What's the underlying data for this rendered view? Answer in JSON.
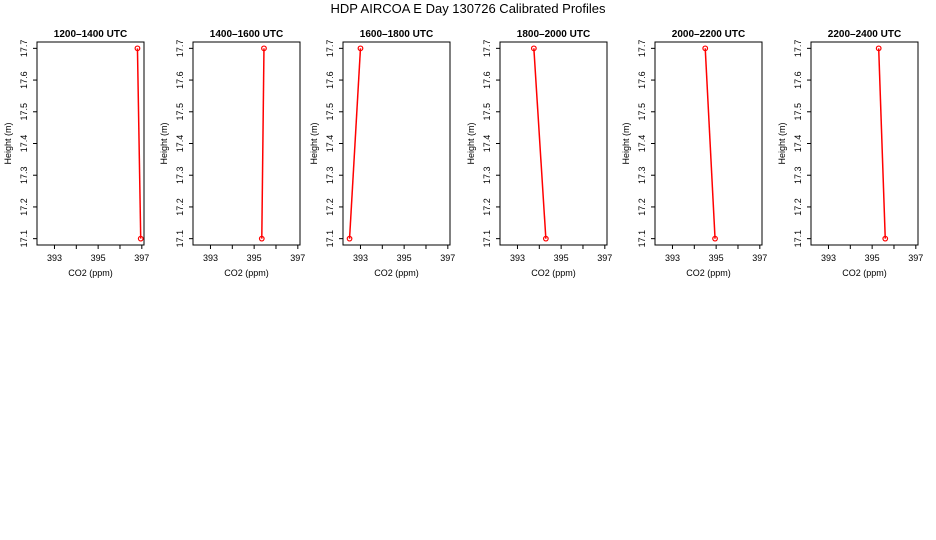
{
  "figure": {
    "title": "HDP AIRCOA E  Day 130726  Calibrated Profiles"
  },
  "chart_data": [
    {
      "type": "line",
      "title": "1200–1400 UTC",
      "xlabel": "CO2 (ppm)",
      "ylabel": "Height (m)",
      "xlim": [
        392.2,
        397.1
      ],
      "ylim": [
        17.08,
        17.72
      ],
      "xticks": [
        393,
        394,
        395,
        396,
        397
      ],
      "xtick_labels": [
        "393",
        "",
        "395",
        "",
        "397"
      ],
      "yticks": [
        17.1,
        17.2,
        17.3,
        17.4,
        17.5,
        17.6,
        17.7
      ],
      "ytick_labels": [
        "17.1",
        "17.2",
        "17.3",
        "17.4",
        "17.5",
        "17.6",
        "17.7"
      ],
      "series": [
        {
          "color": "#ff0000",
          "x": [
            396.95,
            396.8
          ],
          "y": [
            17.1,
            17.7
          ]
        }
      ],
      "grid": false,
      "legend": "none"
    },
    {
      "type": "line",
      "title": "1400–1600 UTC",
      "xlabel": "CO2 (ppm)",
      "ylabel": "Height (m)",
      "xlim": [
        392.2,
        397.1
      ],
      "ylim": [
        17.08,
        17.72
      ],
      "xticks": [
        393,
        394,
        395,
        396,
        397
      ],
      "xtick_labels": [
        "393",
        "",
        "395",
        "",
        "397"
      ],
      "yticks": [
        17.1,
        17.2,
        17.3,
        17.4,
        17.5,
        17.6,
        17.7
      ],
      "ytick_labels": [
        "17.1",
        "17.2",
        "17.3",
        "17.4",
        "17.5",
        "17.6",
        "17.7"
      ],
      "series": [
        {
          "color": "#ff0000",
          "x": [
            395.35,
            395.45
          ],
          "y": [
            17.1,
            17.7
          ]
        }
      ],
      "grid": false,
      "legend": "none"
    },
    {
      "type": "line",
      "title": "1600–1800 UTC",
      "xlabel": "CO2 (ppm)",
      "ylabel": "Height (m)",
      "xlim": [
        392.2,
        397.1
      ],
      "ylim": [
        17.08,
        17.72
      ],
      "xticks": [
        393,
        394,
        395,
        396,
        397
      ],
      "xtick_labels": [
        "393",
        "",
        "395",
        "",
        "397"
      ],
      "yticks": [
        17.1,
        17.2,
        17.3,
        17.4,
        17.5,
        17.6,
        17.7
      ],
      "ytick_labels": [
        "17.1",
        "17.2",
        "17.3",
        "17.4",
        "17.5",
        "17.6",
        "17.7"
      ],
      "series": [
        {
          "color": "#ff0000",
          "x": [
            392.5,
            393.0
          ],
          "y": [
            17.1,
            17.7
          ]
        }
      ],
      "grid": false,
      "legend": "none"
    },
    {
      "type": "line",
      "title": "1800–2000 UTC",
      "xlabel": "CO2 (ppm)",
      "ylabel": "Height (m)",
      "xlim": [
        392.2,
        397.1
      ],
      "ylim": [
        17.08,
        17.72
      ],
      "xticks": [
        393,
        394,
        395,
        396,
        397
      ],
      "xtick_labels": [
        "393",
        "",
        "395",
        "",
        "397"
      ],
      "yticks": [
        17.1,
        17.2,
        17.3,
        17.4,
        17.5,
        17.6,
        17.7
      ],
      "ytick_labels": [
        "17.1",
        "17.2",
        "17.3",
        "17.4",
        "17.5",
        "17.6",
        "17.7"
      ],
      "series": [
        {
          "color": "#ff0000",
          "x": [
            394.3,
            393.75
          ],
          "y": [
            17.1,
            17.7
          ]
        }
      ],
      "grid": false,
      "legend": "none"
    },
    {
      "type": "line",
      "title": "2000–2200 UTC",
      "xlabel": "CO2 (ppm)",
      "ylabel": "Height (m)",
      "xlim": [
        392.2,
        397.1
      ],
      "ylim": [
        17.08,
        17.72
      ],
      "xticks": [
        393,
        394,
        395,
        396,
        397
      ],
      "xtick_labels": [
        "393",
        "",
        "395",
        "",
        "397"
      ],
      "yticks": [
        17.1,
        17.2,
        17.3,
        17.4,
        17.5,
        17.6,
        17.7
      ],
      "ytick_labels": [
        "17.1",
        "17.2",
        "17.3",
        "17.4",
        "17.5",
        "17.6",
        "17.7"
      ],
      "series": [
        {
          "color": "#ff0000",
          "x": [
            394.95,
            394.5
          ],
          "y": [
            17.1,
            17.7
          ]
        }
      ],
      "grid": false,
      "legend": "none"
    },
    {
      "type": "line",
      "title": "2200–2400 UTC",
      "xlabel": "CO2 (ppm)",
      "ylabel": "Height (m)",
      "xlim": [
        392.2,
        397.1
      ],
      "ylim": [
        17.08,
        17.72
      ],
      "xticks": [
        393,
        394,
        395,
        396,
        397
      ],
      "xtick_labels": [
        "393",
        "",
        "395",
        "",
        "397"
      ],
      "yticks": [
        17.1,
        17.2,
        17.3,
        17.4,
        17.5,
        17.6,
        17.7
      ],
      "ytick_labels": [
        "17.1",
        "17.2",
        "17.3",
        "17.4",
        "17.5",
        "17.6",
        "17.7"
      ],
      "series": [
        {
          "color": "#ff0000",
          "x": [
            395.6,
            395.3
          ],
          "y": [
            17.1,
            17.7
          ]
        }
      ],
      "grid": false,
      "legend": "none"
    }
  ]
}
